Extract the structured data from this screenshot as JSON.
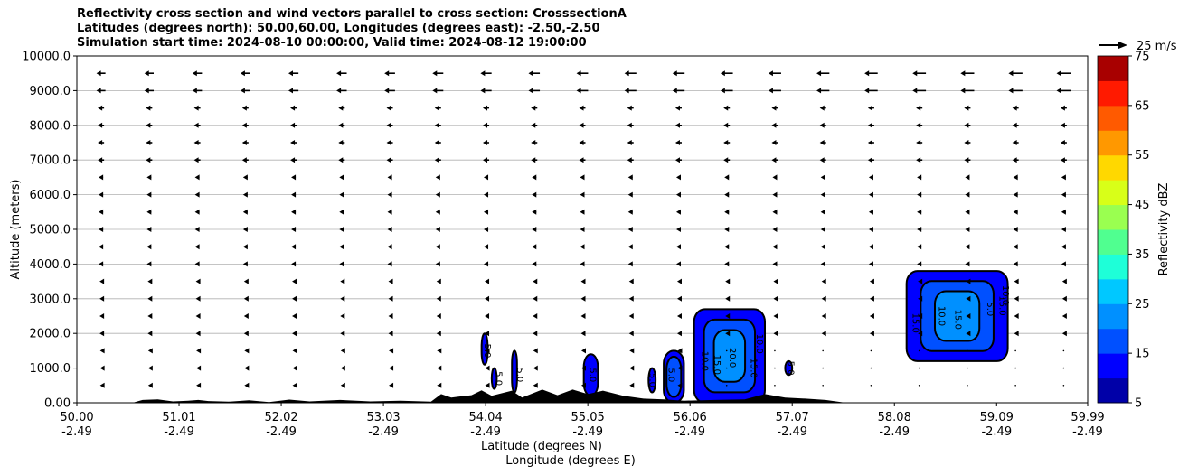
{
  "chart_data": {
    "type": "cross-section",
    "title_lines": [
      "Reflectivity cross section and wind vectors parallel to cross section: CrosssectionA",
      "Latitudes (degrees north): 50.00,60.00, Longitudes (degrees east): -2.50,-2.50",
      "Simulation start time: 2024-08-10 00:00:00, Valid time: 2024-08-12 19:00:00"
    ],
    "ylabel": "Altitude (meters)",
    "xlabel_lat": "Latitude (degrees N)",
    "xlabel_lon": "Longitude (degrees E)",
    "ylim": [
      0,
      10000
    ],
    "xlim": [
      50.0,
      59.99
    ],
    "y_ticks": [
      "0.00",
      "1000.0",
      "2000.0",
      "3000.0",
      "4000.0",
      "5000.0",
      "6000.0",
      "7000.0",
      "8000.0",
      "9000.0",
      "10000.0"
    ],
    "x_ticks": [
      {
        "lat": "50.00",
        "lon": "-2.49"
      },
      {
        "lat": "51.01",
        "lon": "-2.49"
      },
      {
        "lat": "52.02",
        "lon": "-2.49"
      },
      {
        "lat": "53.03",
        "lon": "-2.49"
      },
      {
        "lat": "54.04",
        "lon": "-2.49"
      },
      {
        "lat": "55.05",
        "lon": "-2.49"
      },
      {
        "lat": "56.06",
        "lon": "-2.49"
      },
      {
        "lat": "57.07",
        "lon": "-2.49"
      },
      {
        "lat": "58.08",
        "lon": "-2.49"
      },
      {
        "lat": "59.09",
        "lon": "-2.49"
      },
      {
        "lat": "59.99",
        "lon": "-2.49"
      }
    ],
    "grid": "horizontal",
    "quiver_key_label": "25 m/s",
    "colorbar": {
      "label": "Reflectivity dBZ",
      "levels": [
        5,
        10,
        15,
        20,
        25,
        30,
        35,
        40,
        45,
        50,
        55,
        60,
        65,
        70,
        75
      ],
      "tick_labels": [
        "5",
        "15",
        "25",
        "35",
        "45",
        "55",
        "65",
        "75"
      ],
      "colors": [
        "#0000a8",
        "#0000ff",
        "#0050ff",
        "#0090ff",
        "#00c8ff",
        "#1effd8",
        "#50ff90",
        "#9aff50",
        "#d8ff18",
        "#ffd800",
        "#ff9800",
        "#ff5a00",
        "#ff1a00",
        "#a80000"
      ]
    },
    "reflectivity_cells": [
      {
        "lat_range": [
          54.0,
          54.06
        ],
        "alt_range": [
          1100,
          2000
        ],
        "max_dbz": 5
      },
      {
        "lat_range": [
          54.1,
          54.15
        ],
        "alt_range": [
          400,
          1000
        ],
        "max_dbz": 5
      },
      {
        "lat_range": [
          54.3,
          54.35
        ],
        "alt_range": [
          300,
          1500
        ],
        "max_dbz": 5
      },
      {
        "lat_range": [
          55.01,
          55.15
        ],
        "alt_range": [
          200,
          1400
        ],
        "max_dbz": 5
      },
      {
        "lat_range": [
          55.65,
          55.72
        ],
        "alt_range": [
          300,
          1000
        ],
        "max_dbz": 5
      },
      {
        "lat_range": [
          55.8,
          56.0
        ],
        "alt_range": [
          0,
          1500
        ],
        "max_dbz": 15
      },
      {
        "lat_range": [
          56.1,
          56.8
        ],
        "alt_range": [
          0,
          2700
        ],
        "max_dbz": 20
      },
      {
        "lat_range": [
          57.0,
          57.07
        ],
        "alt_range": [
          800,
          1200
        ],
        "max_dbz": 5
      },
      {
        "lat_range": [
          58.2,
          59.2
        ],
        "alt_range": [
          1200,
          3800
        ],
        "max_dbz": 20
      }
    ],
    "contour_labels": [
      "5.0",
      "5.0",
      "5.0",
      "5.0",
      "5.0",
      "5.0",
      "10.0",
      "15.0",
      "20.0",
      "15.0",
      "10.0",
      "5.0",
      "15.0",
      "10.0",
      "15.0",
      "5.0",
      "15.0",
      "10.0"
    ],
    "wind": {
      "rows_alt": [
        500,
        1000,
        1500,
        2000,
        2500,
        3000,
        3500,
        4000,
        4500,
        5000,
        5500,
        6000,
        6500,
        7000,
        7500,
        8000,
        8500,
        9000,
        9500
      ],
      "direction": "southward (toward lower latitude)",
      "max_speed_ms": 25
    }
  }
}
